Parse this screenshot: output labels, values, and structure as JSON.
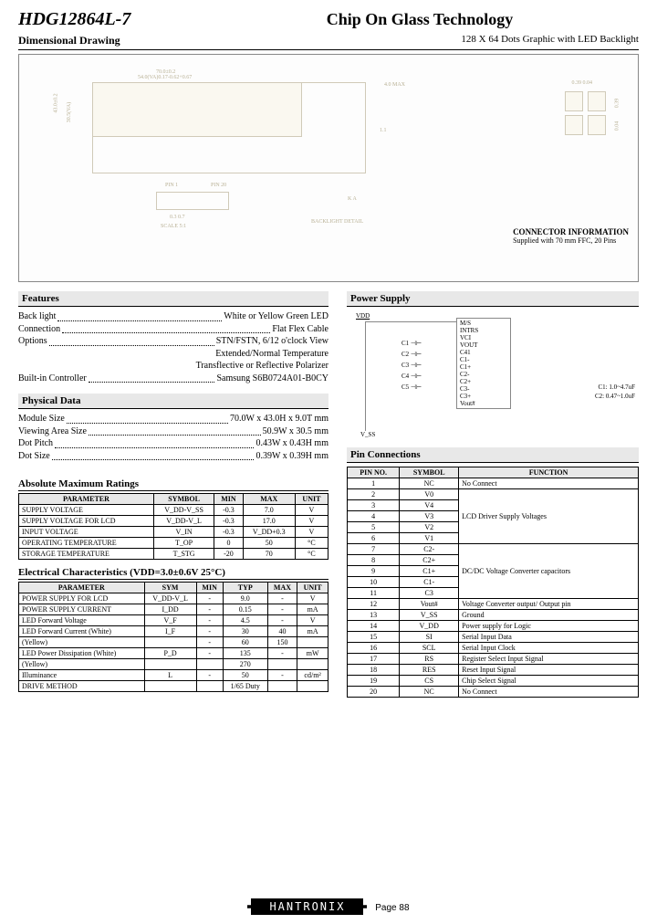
{
  "header": {
    "part_number": "HDG12864L-7",
    "title": "Chip On Glass Technology",
    "subtitle_left": "Dimensional Drawing",
    "subtitle_right": "128 X 64 Dots Graphic with LED Backlight"
  },
  "connector": {
    "heading": "CONNECTOR INFORMATION",
    "text": "Supplied with 70 mm FFC, 20 Pins"
  },
  "features": {
    "heading": "Features",
    "rows": [
      {
        "label": "Back light",
        "value": "White or Yellow Green LED"
      },
      {
        "label": "Connection",
        "value": "Flat Flex Cable"
      },
      {
        "label": "Options",
        "value": "STN/FSTN, 6/12 o'clock View"
      }
    ],
    "extra": [
      "Extended/Normal Temperature",
      "Transflective or Reflective Polarizer"
    ],
    "controller": {
      "label": "Built-in Controller",
      "value": "Samsung S6B0724A01-B0CY"
    }
  },
  "physical": {
    "heading": "Physical Data",
    "rows": [
      {
        "label": "Module Size",
        "value": "70.0W x 43.0H x 9.0T mm"
      },
      {
        "label": "Viewing Area Size",
        "value": "50.9W x 30.5 mm"
      },
      {
        "label": "Dot Pitch",
        "value": "0.43W x 0.43H mm"
      },
      {
        "label": "Dot Size",
        "value": "0.39W x 0.39H mm"
      }
    ]
  },
  "power_supply": {
    "heading": "Power Supply",
    "vdd": "VDD",
    "labels": [
      "M/S",
      "INTRS",
      "VCI",
      "VOUT",
      "C41",
      "C1-",
      "C1+",
      "C2-",
      "C2+",
      "C3-",
      "C3+",
      "Vout#"
    ],
    "caps": [
      "C1",
      "C2",
      "C3",
      "C4",
      "C5"
    ],
    "note1": "C1: 1.0~4.7uF",
    "note2": "C2: 0.47~1.0uF"
  },
  "amr": {
    "heading": "Absolute Maximum Ratings",
    "cols": [
      "PARAMETER",
      "SYMBOL",
      "MIN",
      "MAX",
      "UNIT"
    ],
    "rows": [
      [
        "SUPPLY VOLTAGE",
        "V_DD-V_SS",
        "-0.3",
        "7.0",
        "V"
      ],
      [
        "SUPPLY VOLTAGE FOR LCD",
        "V_DD-V_L",
        "-0.3",
        "17.0",
        "V"
      ],
      [
        "INPUT VOLTAGE",
        "V_IN",
        "-0.3",
        "V_DD+0.3",
        "V"
      ],
      [
        "OPERATING TEMPERATURE",
        "T_OP",
        "0",
        "50",
        "°C"
      ],
      [
        "STORAGE TEMPERATURE",
        "T_STG",
        "-20",
        "70",
        "°C"
      ]
    ]
  },
  "elec": {
    "heading": "Electrical Characteristics (VDD=3.0±0.6V 25°C)",
    "cols": [
      "PARAMETER",
      "SYM",
      "MIN",
      "TYP",
      "MAX",
      "UNIT"
    ],
    "rows": [
      [
        "POWER SUPPLY FOR LCD",
        "V_DD-V_L",
        "-",
        "9.0",
        "-",
        "V"
      ],
      [
        "POWER SUPPLY CURRENT",
        "I_DD",
        "-",
        "0.15",
        "-",
        "mA"
      ],
      [
        "LED Forward Voltage",
        "V_F",
        "-",
        "4.5",
        "-",
        "V"
      ],
      [
        "LED Forward Current (White)",
        "I_F",
        "-",
        "30",
        "40",
        "mA"
      ],
      [
        "(Yellow)",
        "",
        "-",
        "60",
        "150",
        ""
      ],
      [
        "LED Power Dissipation (White)",
        "P_D",
        "-",
        "135",
        "-",
        "mW"
      ],
      [
        "(Yellow)",
        "",
        "",
        "270",
        "",
        ""
      ],
      [
        "Illuminance",
        "L",
        "-",
        "50",
        "-",
        "cd/m²"
      ],
      [
        "DRIVE METHOD",
        "",
        "",
        "1/65 Duty",
        "",
        ""
      ]
    ]
  },
  "pins": {
    "heading": "Pin Connections",
    "cols": [
      "PIN NO.",
      "SYMBOL",
      "FUNCTION"
    ],
    "rows": [
      [
        "1",
        "NC",
        "No Connect"
      ],
      [
        "2",
        "V0",
        ""
      ],
      [
        "3",
        "V4",
        ""
      ],
      [
        "4",
        "V3",
        "LCD Driver Supply Voltages"
      ],
      [
        "5",
        "V2",
        ""
      ],
      [
        "6",
        "V1",
        ""
      ],
      [
        "7",
        "C2-",
        ""
      ],
      [
        "8",
        "C2+",
        ""
      ],
      [
        "9",
        "C1+",
        "DC/DC Voltage Converter capacitors"
      ],
      [
        "10",
        "C1-",
        ""
      ],
      [
        "11",
        "C3",
        ""
      ],
      [
        "12",
        "Vout#",
        "Voltage Converter output/ Output pin"
      ],
      [
        "13",
        "V_SS",
        "Ground"
      ],
      [
        "14",
        "V_DD",
        "Power supply for Logic"
      ],
      [
        "15",
        "SI",
        "Serial Input Data"
      ],
      [
        "16",
        "SCL",
        "Serial Input Clock"
      ],
      [
        "17",
        "RS",
        "Register Select Input Signal"
      ],
      [
        "18",
        "RES",
        "Reset Input Signal"
      ],
      [
        "19",
        "CS",
        "Chip Select Signal"
      ],
      [
        "20",
        "NC",
        "No Connect"
      ]
    ]
  },
  "footer": {
    "logo": "HANTRONIX",
    "page": "Page 88"
  },
  "style": {
    "bg": "#ffffff",
    "text": "#000000",
    "header_bg": "#e8e8e8",
    "drawing_line": "#d0cab8",
    "border": "#000000"
  }
}
